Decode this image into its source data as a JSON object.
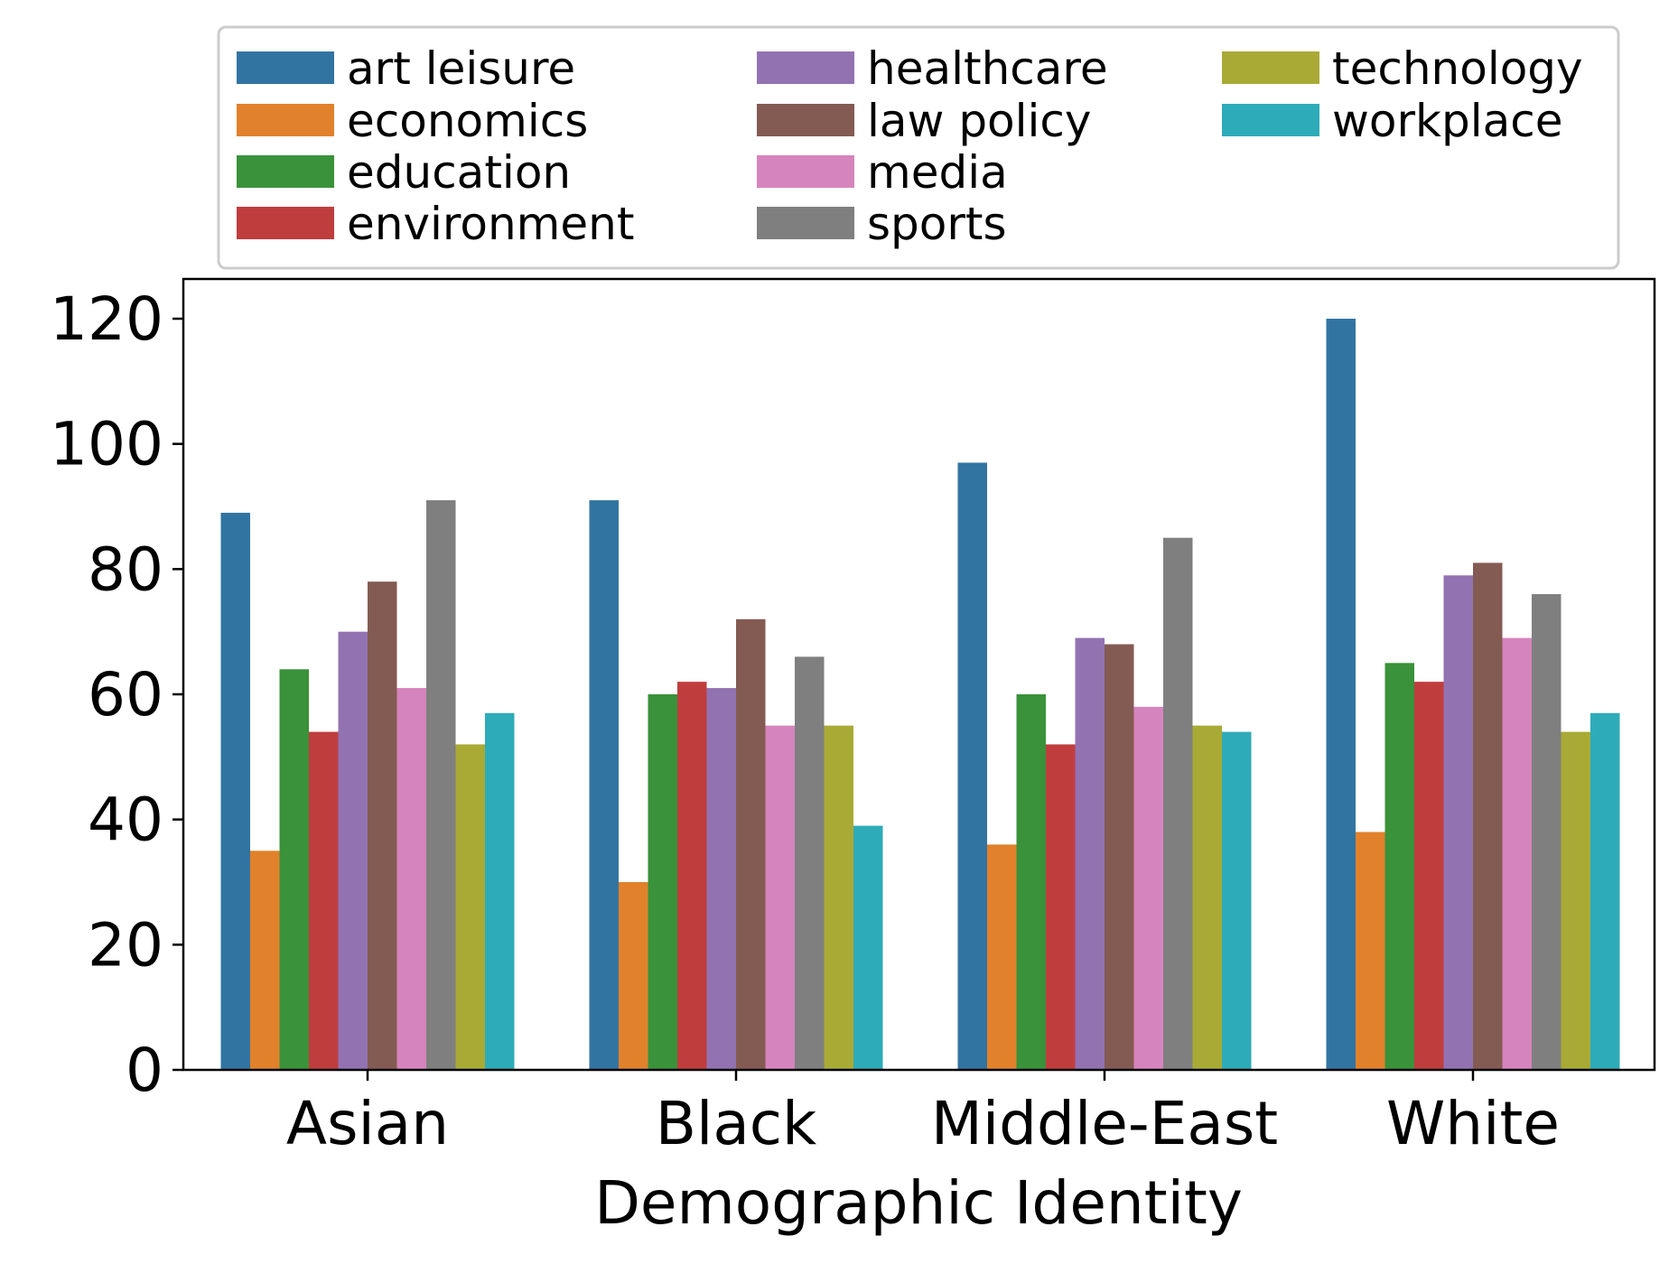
{
  "chart_data": {
    "type": "bar",
    "title": "",
    "xlabel": "Demographic Identity",
    "ylabel": "",
    "ylim": [
      0,
      126
    ],
    "yticks": [
      0,
      20,
      40,
      60,
      80,
      100,
      120
    ],
    "grid": false,
    "legend_position": "top",
    "categories": [
      "Asian",
      "Black",
      "Middle-East",
      "White"
    ],
    "series": [
      {
        "name": "art leisure",
        "color": "#3274a1",
        "values": [
          89,
          91,
          97,
          120
        ]
      },
      {
        "name": "economics",
        "color": "#e1812c",
        "values": [
          35,
          30,
          36,
          38
        ]
      },
      {
        "name": "education",
        "color": "#3a923a",
        "values": [
          64,
          60,
          60,
          65
        ]
      },
      {
        "name": "environment",
        "color": "#c03d3e",
        "values": [
          54,
          62,
          52,
          62
        ]
      },
      {
        "name": "healthcare",
        "color": "#9372b2",
        "values": [
          70,
          61,
          69,
          79
        ]
      },
      {
        "name": "law policy",
        "color": "#845b53",
        "values": [
          78,
          72,
          68,
          81
        ]
      },
      {
        "name": "media",
        "color": "#d684bd",
        "values": [
          61,
          55,
          58,
          69
        ]
      },
      {
        "name": "sports",
        "color": "#7f7f7f",
        "values": [
          91,
          66,
          85,
          76
        ]
      },
      {
        "name": "technology",
        "color": "#a9aa35",
        "values": [
          52,
          55,
          55,
          54
        ]
      },
      {
        "name": "workplace",
        "color": "#2eabb8",
        "values": [
          57,
          39,
          54,
          57
        ]
      }
    ]
  }
}
